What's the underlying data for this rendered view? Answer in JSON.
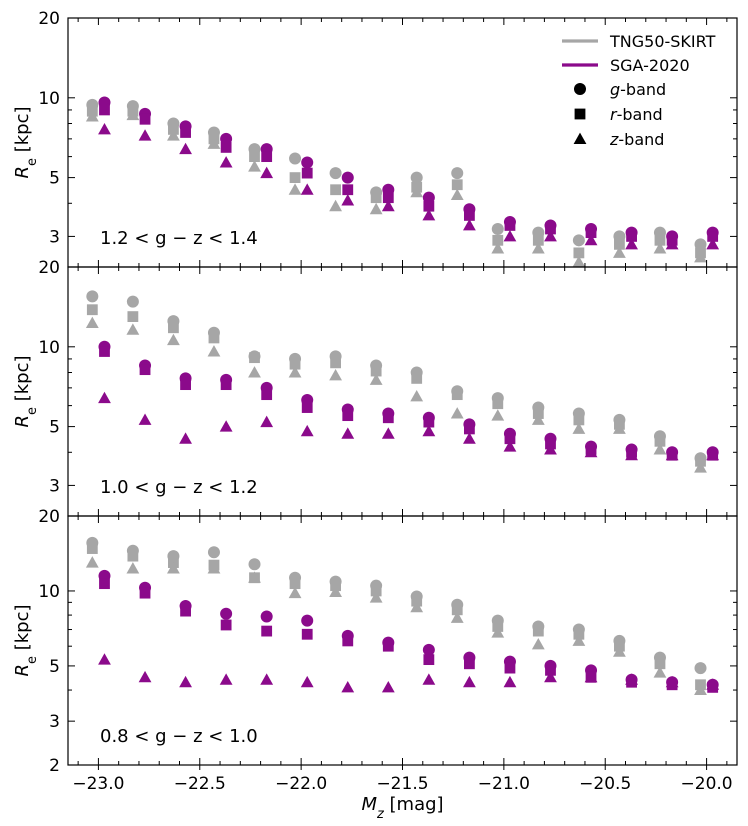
{
  "colors": {
    "tng": "#a6a6a6",
    "sga": "#8b0a8b"
  },
  "legend": {
    "tng": "TNG50-SKIRT",
    "sga": "SGA-2020",
    "g": "g",
    "r": "r",
    "z": "z",
    "band_suffix": "-band"
  },
  "labels": {
    "xlabel_main": "M",
    "xlabel_sub": "z",
    "xlabel_unit": " [mag]",
    "ylabel_main": "R",
    "ylabel_sub": "e",
    "ylabel_unit": " [kpc]"
  },
  "chart_data": {
    "type": "scatter",
    "xlabel": "M_z [mag]",
    "ylabel": "R_e [kpc]",
    "xlim": [
      -23.15,
      -19.85
    ],
    "x_ticks": [
      -23.0,
      -22.5,
      -22.0,
      -21.5,
      -21.0,
      -20.5,
      -20.0
    ],
    "x_tick_labels": [
      "−23.0",
      "−22.5",
      "−22.0",
      "−21.5",
      "−21.0",
      "−20.5",
      "−20.0"
    ],
    "yscale": "log",
    "legend_placement": "top-right",
    "grid": false,
    "panels": [
      {
        "annotation": "1.2 < g − z < 1.4",
        "ylim": [
          2.3,
          20
        ],
        "y_ticks": [
          3,
          5,
          10,
          20
        ],
        "y_tick_labels": [
          "3",
          "5",
          "10",
          "20"
        ],
        "series": [
          {
            "name": "TNG50-SKIRT",
            "band": "g",
            "x": [
              -23.03,
              -22.83,
              -22.63,
              -22.43,
              -22.23,
              -22.03,
              -21.83,
              -21.63,
              -21.43,
              -21.23,
              -21.03,
              -20.83,
              -20.63,
              -20.43,
              -20.23,
              -20.03
            ],
            "y": [
              9.4,
              9.3,
              8.0,
              7.4,
              6.4,
              5.9,
              5.2,
              4.4,
              5.0,
              5.2,
              3.2,
              3.1,
              2.9,
              3.0,
              3.1,
              2.8
            ]
          },
          {
            "name": "TNG50-SKIRT",
            "band": "r",
            "x": [
              -23.03,
              -22.83,
              -22.63,
              -22.43,
              -22.23,
              -22.03,
              -21.83,
              -21.63,
              -21.43,
              -21.23,
              -21.03,
              -20.83,
              -20.63,
              -20.43,
              -20.23,
              -20.03
            ],
            "y": [
              8.9,
              8.9,
              7.6,
              7.0,
              6.0,
              5.0,
              4.5,
              4.2,
              4.6,
              4.7,
              2.9,
              2.9,
              2.6,
              2.8,
              2.9,
              2.6
            ]
          },
          {
            "name": "TNG50-SKIRT",
            "band": "z",
            "x": [
              -23.03,
              -22.83,
              -22.63,
              -22.43,
              -22.23,
              -22.03,
              -21.83,
              -21.63,
              -21.43,
              -21.23,
              -21.03,
              -20.83,
              -20.63,
              -20.43,
              -20.23,
              -20.03
            ],
            "y": [
              8.5,
              8.6,
              7.2,
              6.7,
              5.5,
              4.5,
              3.9,
              3.8,
              4.4,
              4.3,
              2.7,
              2.7,
              2.4,
              2.6,
              2.7,
              2.5
            ]
          },
          {
            "name": "SGA-2020",
            "band": "g",
            "x": [
              -22.97,
              -22.77,
              -22.57,
              -22.37,
              -22.17,
              -21.97,
              -21.77,
              -21.57,
              -21.37,
              -21.17,
              -20.97,
              -20.77,
              -20.57,
              -20.37,
              -20.17,
              -19.97
            ],
            "y": [
              9.6,
              8.7,
              7.8,
              7.0,
              6.4,
              5.7,
              5.0,
              4.5,
              4.2,
              3.8,
              3.4,
              3.3,
              3.2,
              3.1,
              3.0,
              3.1
            ]
          },
          {
            "name": "SGA-2020",
            "band": "r",
            "x": [
              -22.97,
              -22.77,
              -22.57,
              -22.37,
              -22.17,
              -21.97,
              -21.77,
              -21.57,
              -21.37,
              -21.17,
              -20.97,
              -20.77,
              -20.57,
              -20.37,
              -20.17,
              -19.97
            ],
            "y": [
              9.0,
              8.3,
              7.4,
              6.5,
              6.0,
              5.2,
              4.5,
              4.2,
              3.9,
              3.6,
              3.3,
              3.2,
              3.1,
              3.0,
              2.9,
              3.0
            ]
          },
          {
            "name": "SGA-2020",
            "band": "z",
            "x": [
              -22.97,
              -22.77,
              -22.57,
              -22.37,
              -22.17,
              -21.97,
              -21.77,
              -21.57,
              -21.37,
              -21.17,
              -20.97,
              -20.77,
              -20.57,
              -20.37,
              -20.17,
              -19.97
            ],
            "y": [
              7.6,
              7.2,
              6.4,
              5.7,
              5.2,
              4.5,
              4.1,
              3.9,
              3.6,
              3.3,
              3.0,
              3.0,
              2.9,
              2.8,
              2.8,
              2.8
            ]
          }
        ]
      },
      {
        "annotation": "1.0 < g − z < 1.2",
        "ylim": [
          2.3,
          20
        ],
        "y_ticks": [
          3,
          5,
          10,
          20
        ],
        "y_tick_labels": [
          "3",
          "5",
          "10",
          "20"
        ],
        "series": [
          {
            "name": "TNG50-SKIRT",
            "band": "g",
            "x": [
              -23.03,
              -22.83,
              -22.63,
              -22.43,
              -22.23,
              -22.03,
              -21.83,
              -21.63,
              -21.43,
              -21.23,
              -21.03,
              -20.83,
              -20.63,
              -20.43,
              -20.23,
              -20.03
            ],
            "y": [
              15.5,
              14.8,
              12.5,
              11.3,
              9.2,
              9.0,
              9.2,
              8.5,
              8.0,
              6.8,
              6.4,
              5.9,
              5.6,
              5.3,
              4.6,
              3.8
            ]
          },
          {
            "name": "TNG50-SKIRT",
            "band": "r",
            "x": [
              -23.03,
              -22.83,
              -22.63,
              -22.43,
              -22.23,
              -22.03,
              -21.83,
              -21.63,
              -21.43,
              -21.23,
              -21.03,
              -20.83,
              -20.63,
              -20.43,
              -20.23,
              -20.03
            ],
            "y": [
              13.8,
              13.0,
              11.8,
              10.8,
              9.1,
              8.6,
              8.7,
              8.1,
              7.6,
              6.6,
              6.1,
              5.6,
              5.3,
              5.1,
              4.4,
              3.7
            ]
          },
          {
            "name": "TNG50-SKIRT",
            "band": "z",
            "x": [
              -23.03,
              -22.83,
              -22.63,
              -22.43,
              -22.23,
              -22.03,
              -21.83,
              -21.63,
              -21.43,
              -21.23,
              -21.03,
              -20.83,
              -20.63,
              -20.43,
              -20.23,
              -20.03
            ],
            "y": [
              12.3,
              11.6,
              10.6,
              9.6,
              8.0,
              8.0,
              7.8,
              7.5,
              6.5,
              5.6,
              5.5,
              5.3,
              4.9,
              4.9,
              4.1,
              3.5
            ]
          },
          {
            "name": "SGA-2020",
            "band": "g",
            "x": [
              -22.97,
              -22.77,
              -22.57,
              -22.37,
              -22.17,
              -21.97,
              -21.77,
              -21.57,
              -21.37,
              -21.17,
              -20.97,
              -20.77,
              -20.57,
              -20.37,
              -20.17,
              -19.97
            ],
            "y": [
              10.0,
              8.5,
              7.6,
              7.5,
              7.0,
              6.3,
              5.8,
              5.6,
              5.4,
              5.1,
              4.7,
              4.5,
              4.2,
              4.1,
              4.0,
              4.0
            ]
          },
          {
            "name": "SGA-2020",
            "band": "r",
            "x": [
              -22.97,
              -22.77,
              -22.57,
              -22.37,
              -22.17,
              -21.97,
              -21.77,
              -21.57,
              -21.37,
              -21.17,
              -20.97,
              -20.77,
              -20.57,
              -20.37,
              -20.17,
              -19.97
            ],
            "y": [
              9.6,
              8.2,
              7.2,
              7.2,
              6.6,
              5.9,
              5.5,
              5.4,
              5.2,
              4.9,
              4.5,
              4.3,
              4.1,
              4.0,
              3.9,
              3.9
            ]
          },
          {
            "name": "SGA-2020",
            "band": "z",
            "x": [
              -22.97,
              -22.77,
              -22.57,
              -22.37,
              -22.17,
              -21.97,
              -21.77,
              -21.57,
              -21.37,
              -21.17,
              -20.97,
              -20.77,
              -20.57,
              -20.37,
              -20.17,
              -19.97
            ],
            "y": [
              6.4,
              5.3,
              4.5,
              5.0,
              5.2,
              4.8,
              4.7,
              4.7,
              4.8,
              4.5,
              4.2,
              4.1,
              4.0,
              3.9,
              3.9,
              3.9
            ]
          }
        ]
      },
      {
        "annotation": "0.8 < g − z < 1.0",
        "ylim": [
          2.0,
          20
        ],
        "y_ticks": [
          2,
          3,
          5,
          10,
          20
        ],
        "y_tick_labels": [
          "2",
          "3",
          "5",
          "10",
          "20"
        ],
        "series": [
          {
            "name": "TNG50-SKIRT",
            "band": "g",
            "x": [
              -23.03,
              -22.83,
              -22.63,
              -22.43,
              -22.23,
              -22.03,
              -21.83,
              -21.63,
              -21.43,
              -21.23,
              -21.03,
              -20.83,
              -20.63,
              -20.43,
              -20.23,
              -20.03
            ],
            "y": [
              15.6,
              14.5,
              13.8,
              14.3,
              12.8,
              11.3,
              10.9,
              10.5,
              9.5,
              8.8,
              7.6,
              7.2,
              7.0,
              6.3,
              5.4,
              4.9
            ]
          },
          {
            "name": "TNG50-SKIRT",
            "band": "r",
            "x": [
              -23.03,
              -22.83,
              -22.63,
              -22.43,
              -22.23,
              -22.03,
              -21.83,
              -21.63,
              -21.43,
              -21.23,
              -21.03,
              -20.83,
              -20.63,
              -20.43,
              -20.23,
              -20.03
            ],
            "y": [
              14.8,
              13.8,
              13.0,
              12.7,
              11.3,
              10.7,
              10.5,
              10.0,
              9.1,
              8.4,
              7.2,
              6.9,
              6.7,
              6.0,
              5.1,
              4.2
            ]
          },
          {
            "name": "TNG50-SKIRT",
            "band": "z",
            "x": [
              -23.03,
              -22.83,
              -22.63,
              -22.43,
              -22.23,
              -22.03,
              -21.83,
              -21.63,
              -21.43,
              -21.23,
              -21.03,
              -20.83,
              -20.63,
              -20.43,
              -20.23,
              -20.03
            ],
            "y": [
              13.0,
              12.3,
              12.3,
              12.3,
              11.3,
              9.8,
              9.9,
              9.4,
              8.6,
              7.8,
              6.8,
              6.1,
              6.3,
              5.7,
              4.7,
              4.0
            ]
          },
          {
            "name": "SGA-2020",
            "band": "g",
            "x": [
              -22.97,
              -22.77,
              -22.57,
              -22.37,
              -22.17,
              -21.97,
              -21.77,
              -21.57,
              -21.37,
              -21.17,
              -20.97,
              -20.77,
              -20.57,
              -20.37,
              -20.17,
              -19.97
            ],
            "y": [
              11.5,
              10.3,
              8.7,
              8.1,
              7.9,
              7.6,
              6.6,
              6.2,
              5.8,
              5.4,
              5.2,
              5.0,
              4.8,
              4.4,
              4.3,
              4.2
            ]
          },
          {
            "name": "SGA-2020",
            "band": "r",
            "x": [
              -22.97,
              -22.77,
              -22.57,
              -22.37,
              -22.17,
              -21.97,
              -21.77,
              -21.57,
              -21.37,
              -21.17,
              -20.97,
              -20.77,
              -20.57,
              -20.37,
              -20.17,
              -19.97
            ],
            "y": [
              10.7,
              9.8,
              8.3,
              7.3,
              6.9,
              6.7,
              6.3,
              6.0,
              5.3,
              5.1,
              4.9,
              4.8,
              4.5,
              4.3,
              4.2,
              4.1
            ]
          },
          {
            "name": "SGA-2020",
            "band": "z",
            "x": [
              -22.97,
              -22.77,
              -22.57,
              -22.37,
              -22.17,
              -21.97,
              -21.77,
              -21.57,
              -21.37,
              -21.17,
              -20.97,
              -20.77,
              -20.57,
              -20.37,
              -20.17,
              -19.97
            ],
            "y": [
              5.3,
              4.5,
              4.3,
              4.4,
              4.4,
              4.3,
              4.1,
              4.1,
              4.4,
              4.3,
              4.3,
              4.5,
              4.5,
              4.4,
              4.3,
              4.2
            ]
          }
        ]
      }
    ]
  }
}
